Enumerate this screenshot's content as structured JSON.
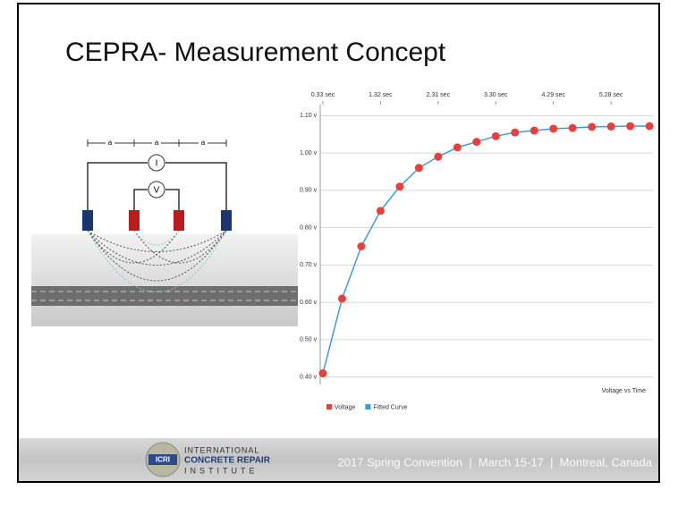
{
  "slide": {
    "title": "CEPRA- Measurement Concept",
    "diagram": {
      "spacing_label": "a",
      "current_label": "I",
      "voltage_label": "V"
    },
    "footer": {
      "logo": "ICRI",
      "org_line1": "INTERNATIONAL",
      "org_line2": "CONCRETE REPAIR",
      "org_line3": "INSTITUTE",
      "event": "2017 Spring Convention  |  March 15-17  |  Montreal, Canada"
    }
  },
  "chart_data": {
    "type": "line",
    "subtitle": "Voltage vs Time",
    "x": [
      0.33,
      0.66,
      0.99,
      1.32,
      1.65,
      1.98,
      2.31,
      2.64,
      2.97,
      3.3,
      3.63,
      3.96,
      4.29,
      4.62,
      4.95,
      5.28,
      5.61,
      5.94
    ],
    "series": [
      {
        "name": "Voltage",
        "color": "#e8403a",
        "values": [
          0.41,
          0.61,
          0.75,
          0.845,
          0.91,
          0.96,
          0.99,
          1.015,
          1.03,
          1.045,
          1.055,
          1.06,
          1.065,
          1.067,
          1.07,
          1.071,
          1.072,
          1.072
        ]
      },
      {
        "name": "Fitted Curve",
        "color": "#3c9ae8",
        "values": [
          0.41,
          0.61,
          0.75,
          0.845,
          0.91,
          0.96,
          0.99,
          1.015,
          1.03,
          1.045,
          1.055,
          1.06,
          1.065,
          1.067,
          1.07,
          1.071,
          1.072,
          1.072
        ]
      }
    ],
    "xlim": [
      -0.1,
      6.0
    ],
    "xticks": [
      {
        "value": 0.33,
        "label": "0.33 sec"
      },
      {
        "value": 1.32,
        "label": "1.32 sec"
      },
      {
        "value": 2.31,
        "label": "2.31 sec"
      },
      {
        "value": 3.3,
        "label": "3.30 sec"
      },
      {
        "value": 4.29,
        "label": "4.29 sec"
      },
      {
        "value": 5.28,
        "label": "5.28 sec"
      }
    ],
    "ylim": [
      0.38,
      1.12
    ],
    "yticks": [
      {
        "value": 0.4,
        "label": "0.40 v"
      },
      {
        "value": 0.5,
        "label": "0.50 v"
      },
      {
        "value": 0.6,
        "label": "0.60 v"
      },
      {
        "value": 0.7,
        "label": "0.70 v"
      },
      {
        "value": 0.8,
        "label": "0.80 v"
      },
      {
        "value": 0.9,
        "label": "0.90 v"
      },
      {
        "value": 1.0,
        "label": "1.00 v"
      },
      {
        "value": 1.1,
        "label": "1.10 v"
      }
    ],
    "grid": true,
    "legend": "bottom-left"
  }
}
